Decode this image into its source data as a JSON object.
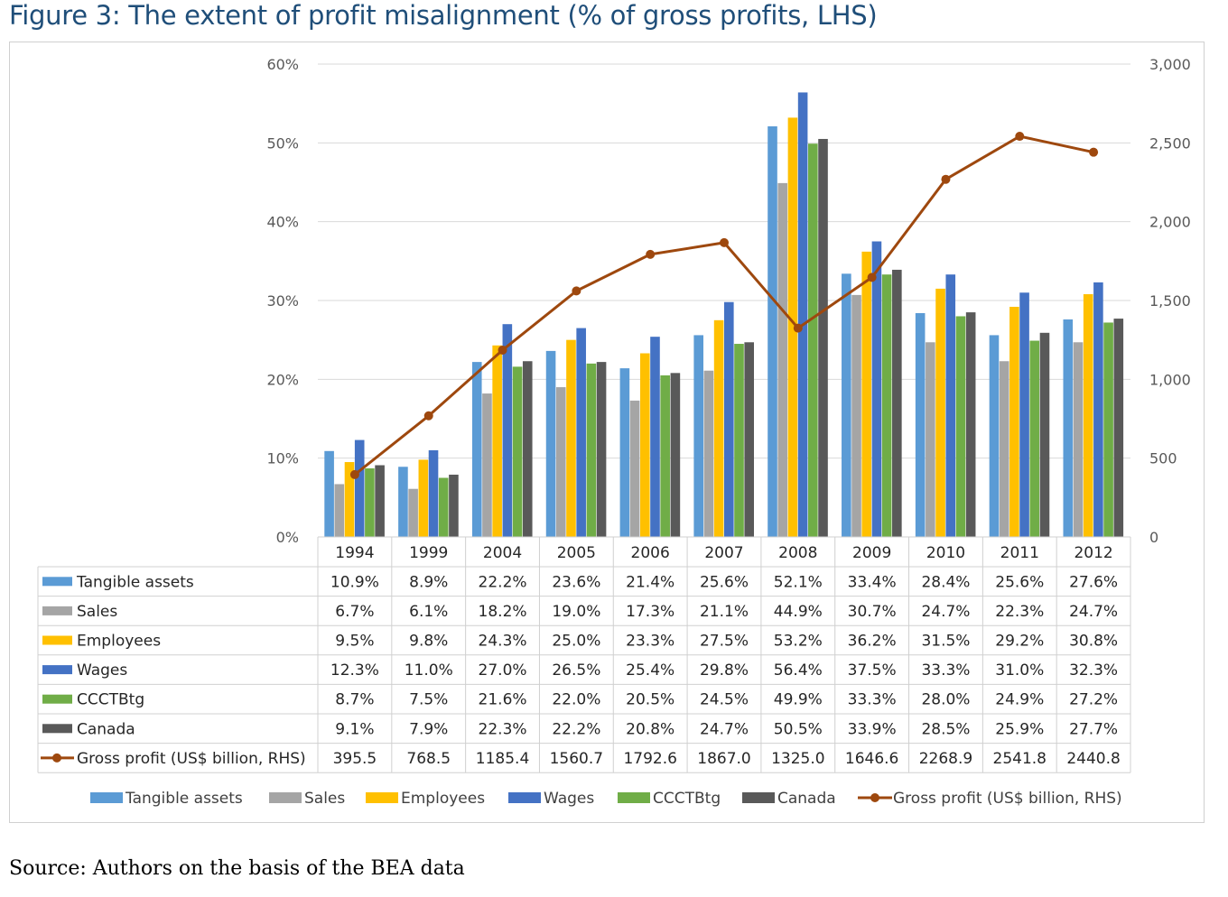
{
  "figure_title": "Figure 3: The extent of profit misalignment (% of gross profits, LHS)",
  "source_note": "Source: Authors on the basis of the BEA data",
  "colors": {
    "tangible": "#5b9bd5",
    "sales": "#a5a5a5",
    "employees": "#ffc000",
    "wages": "#4472c4",
    "ccctbtg": "#70ad47",
    "canada": "#595959",
    "gross": "#9e480e"
  },
  "chart_data": {
    "type": "bar",
    "categories": [
      "1994",
      "1999",
      "2004",
      "2005",
      "2006",
      "2007",
      "2008",
      "2009",
      "2010",
      "2011",
      "2012"
    ],
    "ylim": [
      0,
      60
    ],
    "y_ticks": [
      "0%",
      "10%",
      "20%",
      "30%",
      "40%",
      "50%",
      "60%"
    ],
    "y2lim": [
      0,
      3000
    ],
    "y2_ticks": [
      "0",
      "500",
      "1,000",
      "1,500",
      "2,000",
      "2,500",
      "3,000"
    ],
    "grid": true,
    "legend_position": "bottom",
    "series": [
      {
        "name": "Tangible assets",
        "key": "tangible",
        "axis": "left",
        "kind": "bar",
        "values": [
          10.9,
          8.9,
          22.2,
          23.6,
          21.4,
          25.6,
          52.1,
          33.4,
          28.4,
          25.6,
          27.6
        ],
        "labels": [
          "10.9%",
          "8.9%",
          "22.2%",
          "23.6%",
          "21.4%",
          "25.6%",
          "52.1%",
          "33.4%",
          "28.4%",
          "25.6%",
          "27.6%"
        ]
      },
      {
        "name": "Sales",
        "key": "sales",
        "axis": "left",
        "kind": "bar",
        "values": [
          6.7,
          6.1,
          18.2,
          19.0,
          17.3,
          21.1,
          44.9,
          30.7,
          24.7,
          22.3,
          24.7
        ],
        "labels": [
          "6.7%",
          "6.1%",
          "18.2%",
          "19.0%",
          "17.3%",
          "21.1%",
          "44.9%",
          "30.7%",
          "24.7%",
          "22.3%",
          "24.7%"
        ]
      },
      {
        "name": "Employees",
        "key": "employees",
        "axis": "left",
        "kind": "bar",
        "values": [
          9.5,
          9.8,
          24.3,
          25.0,
          23.3,
          27.5,
          53.2,
          36.2,
          31.5,
          29.2,
          30.8
        ],
        "labels": [
          "9.5%",
          "9.8%",
          "24.3%",
          "25.0%",
          "23.3%",
          "27.5%",
          "53.2%",
          "36.2%",
          "31.5%",
          "29.2%",
          "30.8%"
        ]
      },
      {
        "name": "Wages",
        "key": "wages",
        "axis": "left",
        "kind": "bar",
        "values": [
          12.3,
          11.0,
          27.0,
          26.5,
          25.4,
          29.8,
          56.4,
          37.5,
          33.3,
          31.0,
          32.3
        ],
        "labels": [
          "12.3%",
          "11.0%",
          "27.0%",
          "26.5%",
          "25.4%",
          "29.8%",
          "56.4%",
          "37.5%",
          "33.3%",
          "31.0%",
          "32.3%"
        ]
      },
      {
        "name": "CCCTBtg",
        "key": "ccctbtg",
        "axis": "left",
        "kind": "bar",
        "values": [
          8.7,
          7.5,
          21.6,
          22.0,
          20.5,
          24.5,
          49.9,
          33.3,
          28.0,
          24.9,
          27.2
        ],
        "labels": [
          "8.7%",
          "7.5%",
          "21.6%",
          "22.0%",
          "20.5%",
          "24.5%",
          "49.9%",
          "33.3%",
          "28.0%",
          "24.9%",
          "27.2%"
        ]
      },
      {
        "name": "Canada",
        "key": "canada",
        "axis": "left",
        "kind": "bar",
        "values": [
          9.1,
          7.9,
          22.3,
          22.2,
          20.8,
          24.7,
          50.5,
          33.9,
          28.5,
          25.9,
          27.7
        ],
        "labels": [
          "9.1%",
          "7.9%",
          "22.3%",
          "22.2%",
          "20.8%",
          "24.7%",
          "50.5%",
          "33.9%",
          "28.5%",
          "25.9%",
          "27.7%"
        ]
      },
      {
        "name": "Gross profit (US$ billion, RHS)",
        "key": "gross",
        "axis": "right",
        "kind": "line",
        "values": [
          395.5,
          768.5,
          1185.4,
          1560.7,
          1792.6,
          1867.0,
          1325.0,
          1646.6,
          2268.9,
          2541.8,
          2440.8
        ],
        "labels": [
          "395.5",
          "768.5",
          "1185.4",
          "1560.7",
          "1792.6",
          "1867.0",
          "1325.0",
          "1646.6",
          "2268.9",
          "2541.8",
          "2440.8"
        ]
      }
    ]
  }
}
